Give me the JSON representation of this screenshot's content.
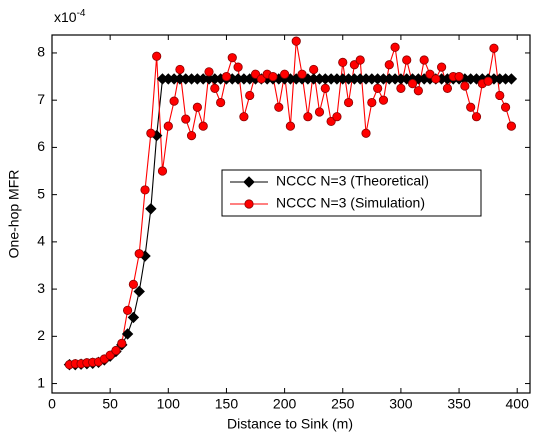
{
  "chart_data": {
    "type": "line",
    "xlabel": "Distance to Sink (m)",
    "ylabel": "One-hop MFR",
    "y_multiplier": "x10",
    "y_multiplier_exp": "-4",
    "x": [
      15,
      20,
      25,
      30,
      35,
      40,
      45,
      50,
      55,
      60,
      65,
      70,
      75,
      80,
      85,
      90,
      95,
      100,
      105,
      110,
      115,
      120,
      125,
      130,
      135,
      140,
      145,
      150,
      155,
      160,
      165,
      170,
      175,
      180,
      185,
      190,
      195,
      200,
      205,
      210,
      215,
      220,
      225,
      230,
      235,
      240,
      245,
      250,
      255,
      260,
      265,
      270,
      275,
      280,
      285,
      290,
      295,
      300,
      305,
      310,
      315,
      320,
      325,
      330,
      335,
      340,
      345,
      350,
      355,
      360,
      365,
      370,
      375,
      380,
      385,
      390,
      395
    ],
    "series": [
      {
        "name": "NCCC N=3 (Theoretical)",
        "color": "#000000",
        "marker": "diamond",
        "values": [
          1.4,
          1.4,
          1.41,
          1.42,
          1.43,
          1.45,
          1.5,
          1.58,
          1.68,
          1.82,
          2.05,
          2.4,
          2.95,
          3.7,
          4.7,
          6.25,
          7.45,
          7.45,
          7.45,
          7.45,
          7.45,
          7.45,
          7.45,
          7.45,
          7.45,
          7.45,
          7.45,
          7.45,
          7.45,
          7.45,
          7.45,
          7.45,
          7.45,
          7.45,
          7.45,
          7.45,
          7.45,
          7.45,
          7.45,
          7.45,
          7.45,
          7.45,
          7.45,
          7.45,
          7.45,
          7.45,
          7.45,
          7.45,
          7.45,
          7.45,
          7.45,
          7.45,
          7.45,
          7.45,
          7.45,
          7.45,
          7.45,
          7.45,
          7.45,
          7.45,
          7.45,
          7.45,
          7.45,
          7.45,
          7.45,
          7.45,
          7.45,
          7.45,
          7.45,
          7.45,
          7.45,
          7.45,
          7.45,
          7.45,
          7.45,
          7.45,
          7.45
        ]
      },
      {
        "name": "NCCC N=3 (Simulation)",
        "color": "#ff0000",
        "marker": "circle",
        "values": [
          1.4,
          1.42,
          1.42,
          1.44,
          1.45,
          1.46,
          1.52,
          1.6,
          1.7,
          1.85,
          2.55,
          3.1,
          3.75,
          5.1,
          6.3,
          7.93,
          5.5,
          6.45,
          6.98,
          7.65,
          6.6,
          6.25,
          6.85,
          6.45,
          7.6,
          7.25,
          6.95,
          7.5,
          7.9,
          7.7,
          6.65,
          7.1,
          7.55,
          7.45,
          7.55,
          7.5,
          6.85,
          7.55,
          6.45,
          8.25,
          7.55,
          6.65,
          7.65,
          6.75,
          7.25,
          6.55,
          6.65,
          7.8,
          6.95,
          7.75,
          7.85,
          6.3,
          6.95,
          7.25,
          7.0,
          7.75,
          8.12,
          7.25,
          7.85,
          7.35,
          7.2,
          7.85,
          7.55,
          7.45,
          7.7,
          7.25,
          7.5,
          7.5,
          7.3,
          6.85,
          6.65,
          7.35,
          7.4,
          8.1,
          7.1,
          6.85,
          6.45
        ]
      }
    ],
    "xlim": [
      0,
      411
    ],
    "ylim": [
      0.8,
      8.38
    ],
    "xticks": [
      0,
      50,
      100,
      150,
      200,
      250,
      300,
      350,
      400
    ],
    "yticks": [
      1,
      2,
      3,
      4,
      5,
      6,
      7,
      8
    ],
    "grid": false,
    "legend": "right"
  }
}
